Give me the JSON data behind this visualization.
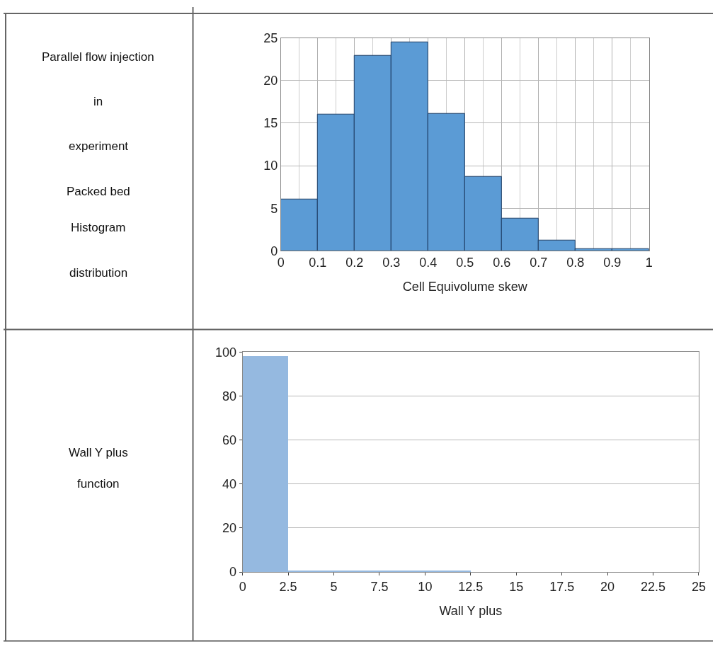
{
  "chart_data": [
    {
      "type": "other",
      "annotations": [
        "Parallel flow injection",
        "in",
        "experiment",
        "Packed bed",
        "Histogram",
        "distribution"
      ]
    },
    {
      "type": "histogram",
      "xlabel": "Cell Equivolume skew",
      "bins": [
        0,
        0.1,
        0.2,
        0.3,
        0.4,
        0.5,
        0.6,
        0.7,
        0.8,
        0.9,
        1
      ],
      "values": [
        6.0,
        16.0,
        22.9,
        24.5,
        16.1,
        8.7,
        3.8,
        1.2,
        0.2,
        0.2
      ],
      "color": "#5b9bd5",
      "xlim": [
        0,
        1
      ],
      "xticks": [
        0,
        0.1,
        0.2,
        0.3,
        0.4,
        0.5,
        0.6,
        0.7,
        0.8,
        0.9,
        1
      ],
      "ylim": [
        0,
        25
      ],
      "yticks": [
        0,
        5,
        10,
        15,
        20,
        25
      ],
      "grid": true
    },
    {
      "type": "other",
      "annotations": [
        "Wall Y plus",
        "function"
      ]
    },
    {
      "type": "histogram",
      "xlabel": "Wall Y plus",
      "bins": [
        0,
        2.5,
        5,
        7.5,
        10,
        12.5
      ],
      "values": [
        98,
        0.5,
        0.5,
        0.5,
        0.5
      ],
      "color": "#95b9e0",
      "xlim": [
        0,
        25
      ],
      "xticks": [
        0,
        2.5,
        5,
        7.5,
        10,
        12.5,
        15,
        17.5,
        20,
        22.5,
        25
      ],
      "ylim": [
        0,
        100
      ],
      "yticks": [
        0,
        20,
        40,
        60,
        80,
        100
      ],
      "grid": "y"
    }
  ]
}
